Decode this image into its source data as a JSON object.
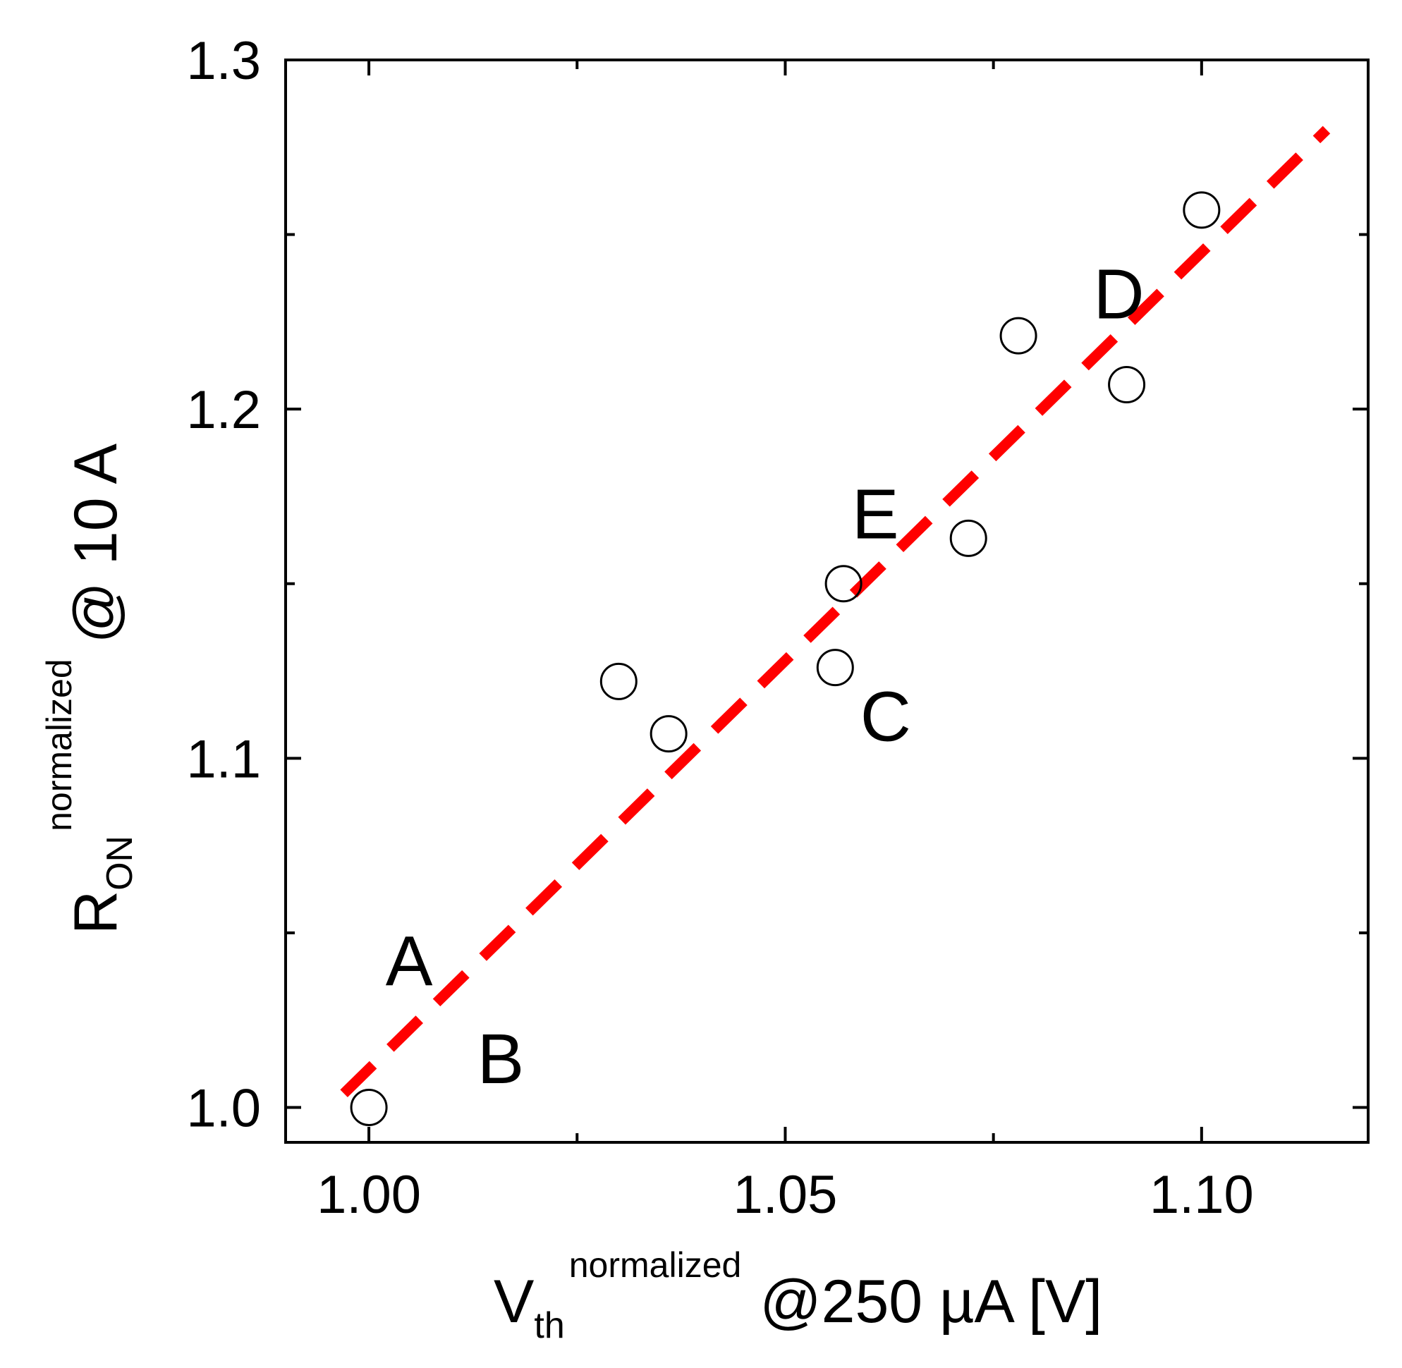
{
  "chart_data": {
    "type": "scatter",
    "title": "",
    "xlabel": {
      "main": "V",
      "sub": "th",
      "sup": "normalized",
      "suffix": "@250 µA [V]"
    },
    "ylabel": {
      "main": "R",
      "sub": "ON",
      "sup": "normalized",
      "suffix": "@ 10 A"
    },
    "xlim": [
      0.99,
      1.12
    ],
    "ylim": [
      0.99,
      1.3
    ],
    "xticks": [
      1.0,
      1.05,
      1.1
    ],
    "xtick_labels": [
      "1.00",
      "1.05",
      "1.10"
    ],
    "x_minor_ticks": [
      1.025,
      1.075
    ],
    "yticks": [
      1.0,
      1.1,
      1.2,
      1.3
    ],
    "ytick_labels": [
      "1.0",
      "1.1",
      "1.2",
      "1.3"
    ],
    "y_minor_ticks": [
      1.05,
      1.15,
      1.25
    ],
    "grid": false,
    "legend": "none",
    "series": [
      {
        "marker": "open-circle",
        "color": "#000000",
        "points": [
          {
            "x": 1.0,
            "y": 1.0
          },
          {
            "x": 1.03,
            "y": 1.122
          },
          {
            "x": 1.036,
            "y": 1.107
          },
          {
            "x": 1.056,
            "y": 1.126
          },
          {
            "x": 1.057,
            "y": 1.15
          },
          {
            "x": 1.072,
            "y": 1.163
          },
          {
            "x": 1.078,
            "y": 1.221
          },
          {
            "x": 1.091,
            "y": 1.207
          },
          {
            "x": 1.1,
            "y": 1.257
          }
        ]
      }
    ],
    "fit_line": {
      "style": "dashed",
      "color": "#ff0000",
      "points": [
        [
          0.997,
          1.004
        ],
        [
          1.115,
          1.28
        ]
      ]
    },
    "annotations": [
      {
        "text": "A",
        "x": 1.002,
        "y": 1.035
      },
      {
        "text": "B",
        "x": 1.013,
        "y": 1.007
      },
      {
        "text": "C",
        "x": 1.059,
        "y": 1.105
      },
      {
        "text": "D",
        "x": 1.087,
        "y": 1.226
      },
      {
        "text": "E",
        "x": 1.058,
        "y": 1.163
      }
    ]
  }
}
